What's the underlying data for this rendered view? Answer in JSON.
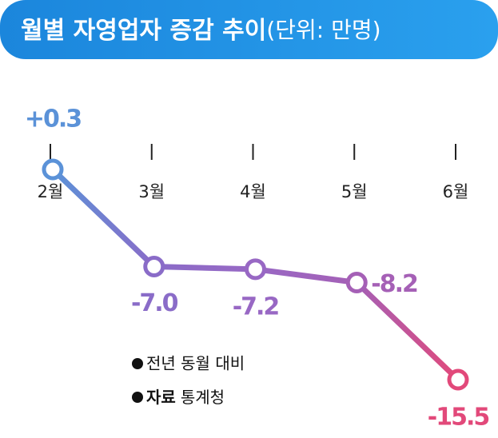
{
  "chart_data": {
    "type": "line",
    "title": "월별 자영업자 증감 추이",
    "unit": "(단위: 만명)",
    "categories": [
      "2월",
      "3월",
      "4월",
      "5월",
      "6월"
    ],
    "values": [
      0.3,
      -7.0,
      -7.2,
      -8.2,
      -15.5
    ],
    "value_labels": [
      "+0.3",
      "-7.0",
      "-7.2",
      "-8.2",
      "-15.5"
    ],
    "point_colors": [
      "#5b92d8",
      "#8a6cc8",
      "#9868c4",
      "#a560b6",
      "#e2497a"
    ],
    "series_name": "전년 동월 대비",
    "source_label": "자료",
    "source": "통계청"
  }
}
